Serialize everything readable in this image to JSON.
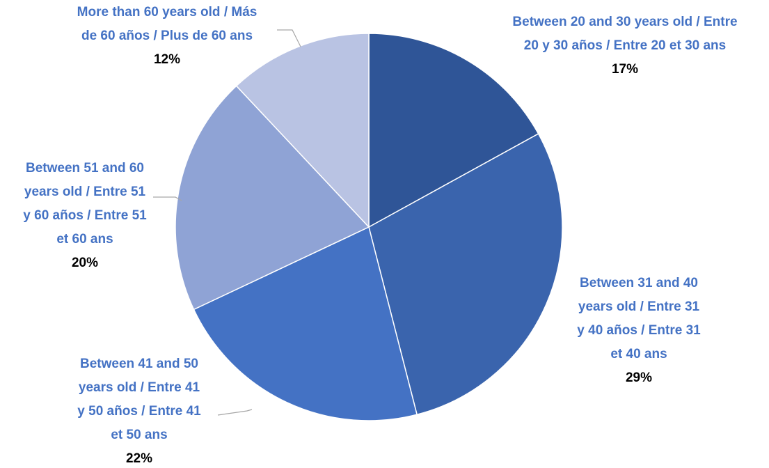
{
  "chart_data": {
    "type": "pie",
    "title": "",
    "categories": [
      "Between 20 and 30 years old / Entre 20 y 30 años / Entre 20 et 30 ans",
      "Between 31 and 40 years old / Entre 31 y 40 años / Entre 31 et 40 ans",
      "Between 41 and 50 years old / Entre 41 y 50 años / Entre 41 et 50 ans",
      "Between 51 and 60 years old / Entre 51 y 60 años / Entre 51 et 60 ans",
      "More than 60 years old / Más de 60 años / Plus de 60 ans"
    ],
    "values": [
      17,
      29,
      22,
      20,
      12
    ],
    "value_labels": [
      "17%",
      "29%",
      "22%",
      "20%",
      "12%"
    ],
    "label_lines": [
      [
        "Between 20 and 30 years old / Entre",
        "20 y 30 años / Entre 20 et 30 ans"
      ],
      [
        "Between 31 and 40",
        "years old / Entre 31",
        "y 40 años / Entre 31",
        "et 40 ans"
      ],
      [
        "Between 41 and 50",
        "years old / Entre 41",
        "y 50 años / Entre 41",
        "et 50 ans"
      ],
      [
        "Between 51 and 60",
        "years old / Entre 51",
        "y 60 años / Entre 51",
        "et 60 ans"
      ],
      [
        "More than 60 years old / Más",
        "de 60 años / Plus de 60 ans"
      ]
    ],
    "colors": [
      "#2F5597",
      "#3A64AD",
      "#4472C4",
      "#8FA3D5",
      "#B9C3E3"
    ],
    "label_color": "#4472C4",
    "value_label_color": "#000000",
    "leader_line_color": "#A6A6A6",
    "legend": "none"
  }
}
